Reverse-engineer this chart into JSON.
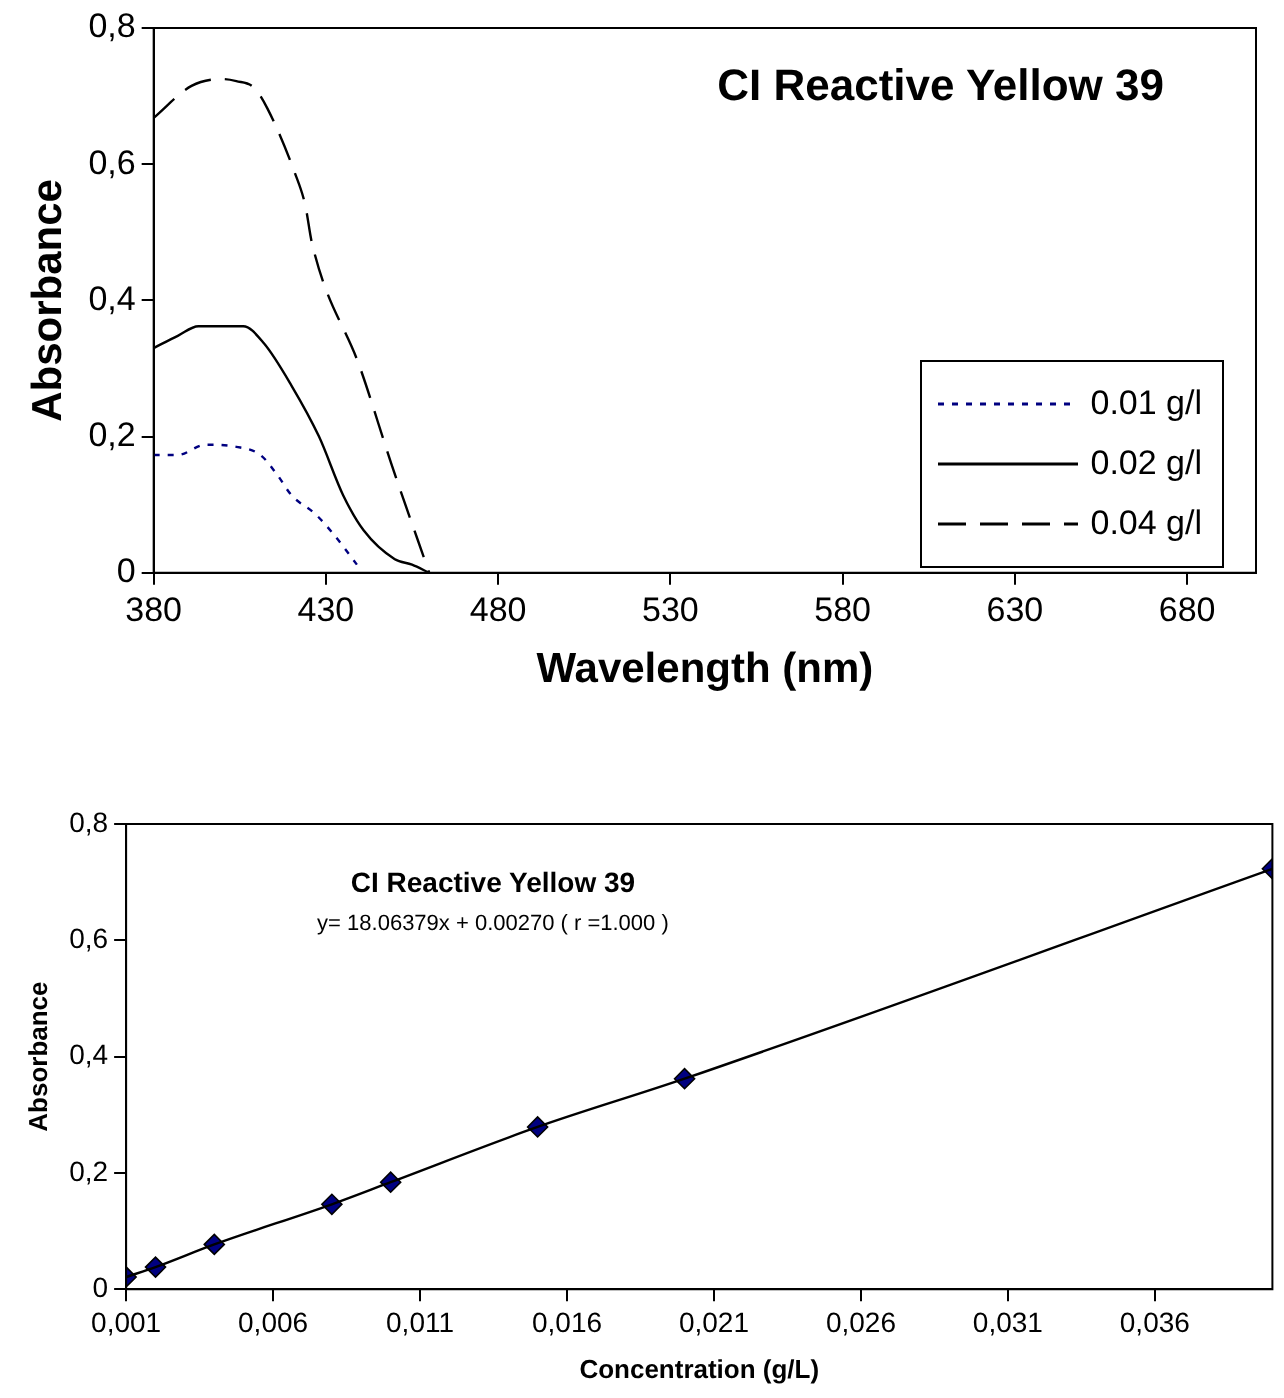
{
  "chart_data": [
    {
      "type": "line",
      "title": "CI Reactive Yellow 39",
      "xlabel": "Wavelength (nm)",
      "ylabel": "Absorbance",
      "xlim": [
        380,
        700
      ],
      "xticks": [
        380,
        430,
        480,
        530,
        580,
        630,
        680
      ],
      "ylim": [
        0,
        0.8
      ],
      "yticks": [
        0,
        {
          "value": 0.2,
          "label": "0,2"
        },
        {
          "value": 0.4,
          "label": "0,4"
        },
        {
          "value": 0.6,
          "label": "0,6"
        },
        {
          "value": 0.8,
          "label": "0,8"
        }
      ],
      "grid": false,
      "legend": "bottom right",
      "marker": "none",
      "series": [
        {
          "name": "0.01 g/l",
          "color": "#000080",
          "line_style": "dotted",
          "x": [
            380,
            387,
            395,
            404,
            411,
            416,
            420,
            427,
            432,
            439
          ],
          "values": [
            0.173,
            0.173,
            0.188,
            0.185,
            0.173,
            0.143,
            0.114,
            0.086,
            0.058,
            0.012
          ]
        },
        {
          "name": "0.02 g/l",
          "color": "#000000",
          "line_style": "solid",
          "x": [
            380,
            387,
            393,
            406,
            412,
            420,
            428,
            435,
            441,
            450,
            455,
            460
          ],
          "values": [
            0.33,
            0.348,
            0.362,
            0.362,
            0.337,
            0.275,
            0.2,
            0.114,
            0.062,
            0.02,
            0.012,
            0
          ]
        },
        {
          "name": "0.04 g/l",
          "color": "#000000",
          "line_style": "dashed",
          "x": [
            380,
            391,
            400,
            404,
            409,
            413,
            421,
            424,
            426,
            440,
            449,
            460
          ],
          "values": [
            0.668,
            0.715,
            0.725,
            0.722,
            0.713,
            0.682,
            0.587,
            0.54,
            0.483,
            0.3,
            0.16,
            0
          ]
        }
      ]
    },
    {
      "type": "line",
      "title": "CI Reactive Yellow 39",
      "subtitle": "y= 18.06379x + 0.00270 ( r =1.000 )",
      "xlabel": "Concentration (g/L)",
      "ylabel": "Absorbance",
      "x": [
        0.001,
        0.002,
        0.004,
        0.008,
        0.01,
        0.015,
        0.02,
        0.04
      ],
      "xlim": [
        0.001,
        0.04
      ],
      "xticks": [
        {
          "value": 0.001,
          "label": "0,001"
        },
        {
          "value": 0.006,
          "label": "0,006"
        },
        {
          "value": 0.011,
          "label": "0,011"
        },
        {
          "value": 0.016,
          "label": "0,016"
        },
        {
          "value": 0.021,
          "label": "0,021"
        },
        {
          "value": 0.026,
          "label": "0,026"
        },
        {
          "value": 0.031,
          "label": "0,031"
        },
        {
          "value": 0.036,
          "label": "0,036"
        }
      ],
      "ylim": [
        0,
        0.8
      ],
      "yticks": [
        0,
        {
          "value": 0.2,
          "label": "0,2"
        },
        {
          "value": 0.4,
          "label": "0,4"
        },
        {
          "value": 0.6,
          "label": "0,6"
        },
        {
          "value": 0.8,
          "label": "0,8"
        }
      ],
      "grid": false,
      "legend": false,
      "series": [
        {
          "color": "#000000",
          "marker": "none",
          "values": [
            0.021,
            0.038,
            0.077,
            0.146,
            0.184,
            0.279,
            0.362,
            0.723
          ]
        },
        {
          "type": "scatter",
          "color": "#000080",
          "marker": "diamond",
          "values": [
            0.021,
            0.038,
            0.077,
            0.146,
            0.184,
            0.279,
            0.362,
            0.723
          ]
        }
      ]
    }
  ]
}
